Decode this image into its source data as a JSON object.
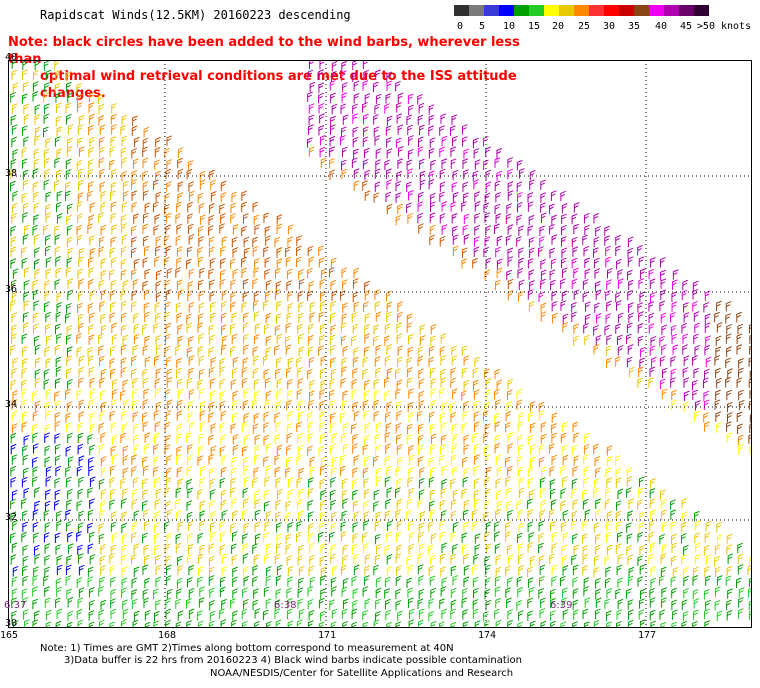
{
  "title": "Rapidscat Winds(12.5KM) 20160223 descending",
  "note": {
    "line1": "Note: black circles have been added to the wind barbs, wherever less than",
    "line2": "optimal wind retrieval conditions are met due to the ISS attitude changes."
  },
  "colorbar": {
    "labels": [
      "0",
      "5",
      "10",
      "15",
      "20",
      "25",
      "30",
      "35",
      "40",
      "45",
      ">50 knots"
    ],
    "colors": [
      "#303030",
      "#7a7a7a",
      "#3a3ad8",
      "#0000ff",
      "#00a000",
      "#22cc22",
      "#ffff00",
      "#e8c800",
      "#ff8800",
      "#ff3030",
      "#ff0000",
      "#cc0000",
      "#8b4513",
      "#ee00ee",
      "#b000b0",
      "#6a006a",
      "#300030"
    ]
  },
  "axes": {
    "x_ticks": [
      "165",
      "168",
      "171",
      "174",
      "177"
    ],
    "y_ticks": [
      "40",
      "38",
      "36",
      "34",
      "32",
      "30"
    ]
  },
  "time_labels": [
    "6:37",
    "6:38",
    "6:39"
  ],
  "footer": {
    "line1": "Note: 1) Times are GMT 2)Times along bottom correspond to measurement at 40N",
    "line2": "3)Data buffer is 22 hrs from 20160223 4) Black wind barbs indicate possible contamination",
    "line3": "NOAA/NESDIS/Center for Satellite Applications and Research"
  }
}
